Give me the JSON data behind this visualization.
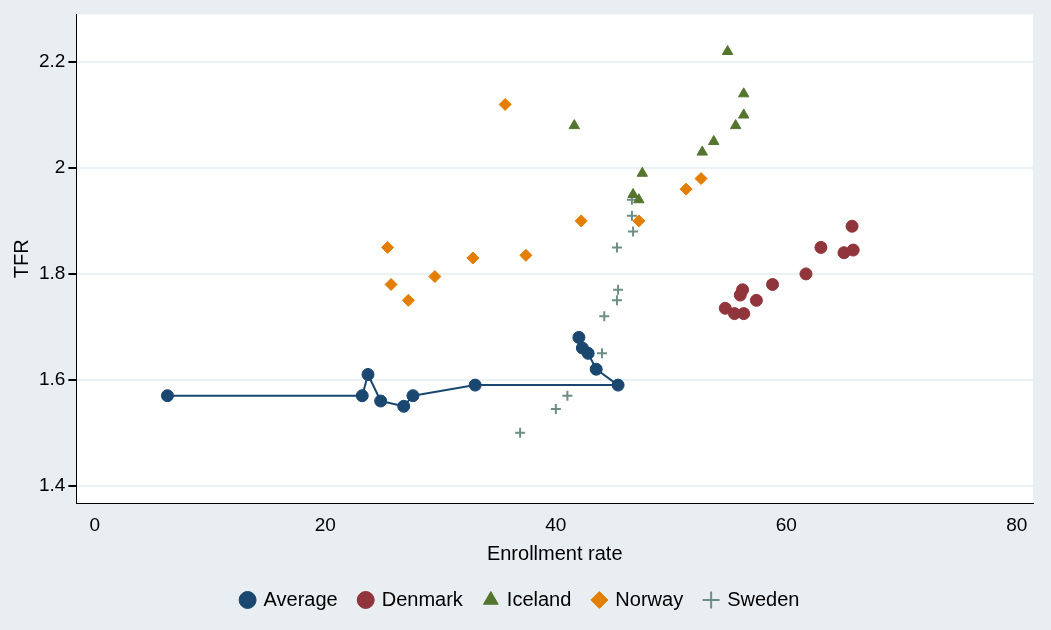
{
  "chart_data": {
    "type": "scatter",
    "xlabel": "Enrollment rate",
    "ylabel": "TFR",
    "xlim": [
      -1.6,
      81.4
    ],
    "xticks": [
      0,
      20,
      40,
      60,
      80
    ],
    "ylim": [
      1.367,
      2.29
    ],
    "yticks": [
      1.4,
      1.6,
      1.8,
      2,
      2.2
    ],
    "grid": "y",
    "legend": "bottom",
    "series": [
      {
        "name": "Average",
        "type": "line",
        "color": "#1a476f",
        "marker": "circle",
        "line_style": "solid",
        "x": [
          6.3,
          23.2,
          23.7,
          24.8,
          26.8,
          27.6,
          33.0,
          45.4,
          43.5,
          42.8,
          42.3,
          42.0
        ],
        "values": [
          1.57,
          1.57,
          1.61,
          1.56,
          1.55,
          1.57,
          1.59,
          1.59,
          1.62,
          1.65,
          1.66,
          1.68
        ]
      },
      {
        "name": "Denmark",
        "color": "#90353b",
        "marker": "circle",
        "x": [
          65.7,
          63.0,
          65.0,
          65.8,
          61.7,
          58.8,
          56.2,
          56.0,
          57.4,
          54.7,
          55.5,
          56.3
        ],
        "values": [
          1.89,
          1.85,
          1.84,
          1.845,
          1.8,
          1.78,
          1.77,
          1.76,
          1.75,
          1.735,
          1.725,
          1.725
        ]
      },
      {
        "name": "Iceland",
        "color": "#55752f",
        "marker": "triangle",
        "x": [
          54.9,
          56.3,
          56.3,
          55.6,
          53.7,
          52.7,
          47.5,
          41.6,
          46.7,
          47.2
        ],
        "values": [
          2.22,
          2.14,
          2.1,
          2.08,
          2.05,
          2.03,
          1.99,
          2.08,
          1.95,
          1.94
        ]
      },
      {
        "name": "Norway",
        "color": "#e37e00",
        "marker": "diamond",
        "x": [
          35.6,
          25.4,
          25.7,
          27.2,
          29.5,
          32.8,
          37.4,
          42.2,
          47.2,
          51.3,
          52.6
        ],
        "values": [
          2.12,
          1.85,
          1.78,
          1.75,
          1.795,
          1.83,
          1.835,
          1.9,
          1.9,
          1.96,
          1.98
        ]
      },
      {
        "name": "Sweden",
        "color": "#6e8e84",
        "marker": "cross",
        "x": [
          46.6,
          46.6,
          46.7,
          45.3,
          45.4,
          45.3,
          44.2,
          44.0,
          41.0,
          40.0,
          36.9
        ],
        "values": [
          1.94,
          1.91,
          1.88,
          1.85,
          1.77,
          1.75,
          1.72,
          1.65,
          1.57,
          1.545,
          1.5
        ]
      }
    ]
  }
}
